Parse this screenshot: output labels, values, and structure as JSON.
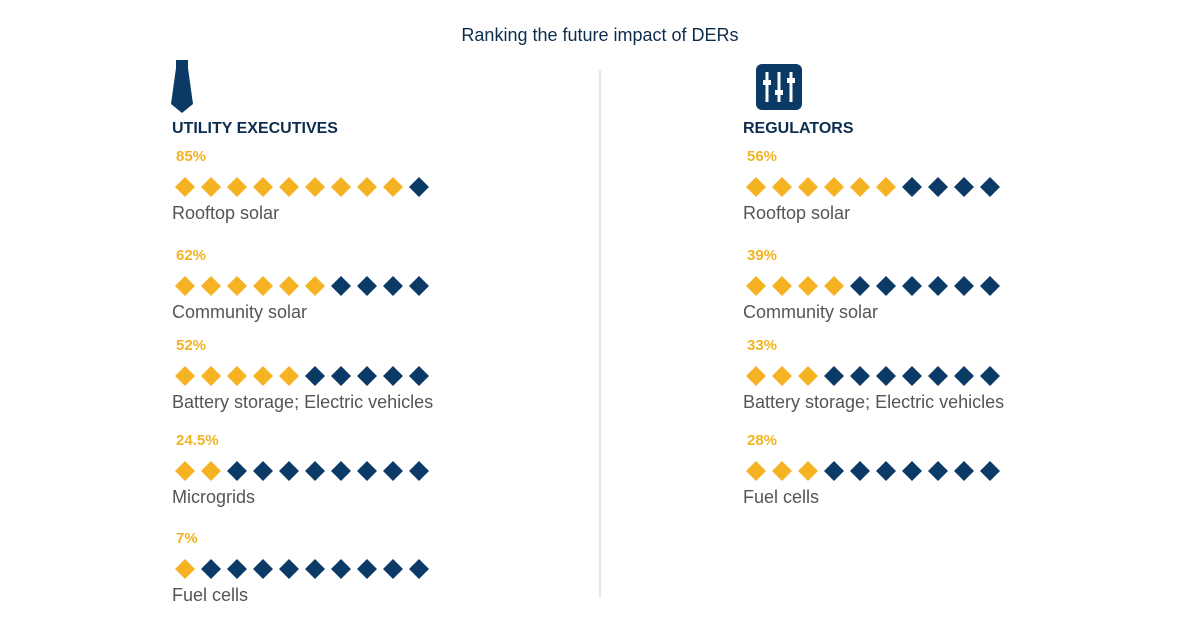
{
  "title": "Ranking the future impact of DERs",
  "chart_data": [
    {
      "type": "pictograph",
      "title": "UTILITY EXECUTIVES",
      "categories": [
        "Rooftop solar",
        "Community solar",
        "Battery storage; Electric vehicles",
        "Microgrids",
        "Fuel cells"
      ],
      "values": [
        85,
        62,
        52,
        24.5,
        7
      ],
      "value_labels": [
        "85%",
        "62%",
        "52%",
        "24.5%",
        "7%"
      ],
      "xlim": [
        0,
        100
      ],
      "color": "#f5b324",
      "empty_color": "#0c3a66"
    },
    {
      "type": "pictograph",
      "title": "REGULATORS",
      "categories": [
        "Rooftop solar",
        "Community solar",
        "Battery storage; Electric vehicles",
        "Fuel cells"
      ],
      "values": [
        56,
        39,
        33,
        28
      ],
      "value_labels": [
        "56%",
        "39%",
        "33%",
        "28%"
      ],
      "xlim": [
        0,
        100
      ],
      "color": "#f5b324",
      "empty_color": "#0c3a66"
    }
  ]
}
